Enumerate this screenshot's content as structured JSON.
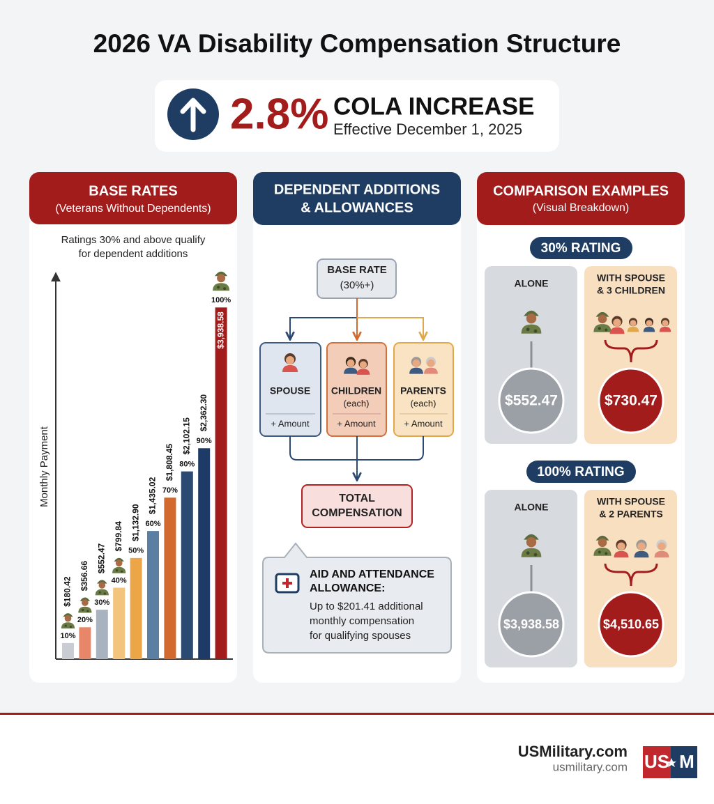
{
  "title": "2026 VA Disability Compensation Structure",
  "cola": {
    "value": "2.8%",
    "heading": "COLA INCREASE",
    "subtitle": "Effective December 1, 2025"
  },
  "chart_data": {
    "type": "bar",
    "title": "BASE RATES",
    "subtitle": "(Veterans Without Dependents)",
    "annotation": [
      "Ratings 30% and above qualify",
      "for dependent additions"
    ],
    "y_label": "Monthly Payment",
    "categories": [
      "10%",
      "20%",
      "30%",
      "40%",
      "50%",
      "60%",
      "70%",
      "80%",
      "90%",
      "100%"
    ],
    "values": [
      180.42,
      356.66,
      552.47,
      799.84,
      1132.9,
      1435.02,
      1808.45,
      2102.15,
      2362.3,
      3938.58
    ],
    "value_labels": [
      "$180.42",
      "$356.66",
      "$552.47",
      "$799.84",
      "$1,132.90",
      "$1,435.02",
      "$1,808.45",
      "$2,102.15",
      "$2,362.30",
      "$3,938.58"
    ],
    "colors": [
      "#c9cdd3",
      "#e8866a",
      "#a9b3bf",
      "#f3c47e",
      "#eca547",
      "#5b7ea3",
      "#d2692e",
      "#2b4a72",
      "#1e3a66",
      "#a31c1c"
    ],
    "ylim": [
      0,
      4300
    ]
  },
  "dependents": {
    "header": [
      "DEPENDENT ADDITIONS",
      "& ALLOWANCES"
    ],
    "base": "BASE RATE",
    "base_sub": "(30%+)",
    "boxes": [
      {
        "label": "SPOUSE",
        "amount": "+ Amount"
      },
      {
        "label": "CHILDREN",
        "sub": "(each)",
        "amount": "+ Amount"
      },
      {
        "label": "PARENTS",
        "sub": "(each)",
        "amount": "+ Amount"
      }
    ],
    "total": [
      "TOTAL",
      "COMPENSATION"
    ],
    "aid": {
      "title": [
        "AID AND ATTENDANCE",
        "ALLOWANCE:"
      ],
      "text": [
        "Up to $201.41 additional",
        "monthly compensation",
        "for qualifying spouses"
      ]
    }
  },
  "comparison": {
    "header": "COMPARISON EXAMPLES",
    "subtitle": "(Visual Breakdown)",
    "examples": [
      {
        "rating": "30% RATING",
        "alone_label": "ALONE",
        "alone_value": "$552.47",
        "with_label": [
          "WITH SPOUSE",
          "& 3 CHILDREN"
        ],
        "with_value": "$730.47"
      },
      {
        "rating": "100% RATING",
        "alone_label": "ALONE",
        "alone_value": "$3,938.58",
        "with_label": [
          "WITH SPOUSE",
          "& 2 PARENTS"
        ],
        "with_value": "$4,510.65"
      }
    ]
  },
  "footer": {
    "site": "USMilitary.com",
    "url": "usmilitary.com",
    "logo_left": "US",
    "logo_right": "M"
  }
}
